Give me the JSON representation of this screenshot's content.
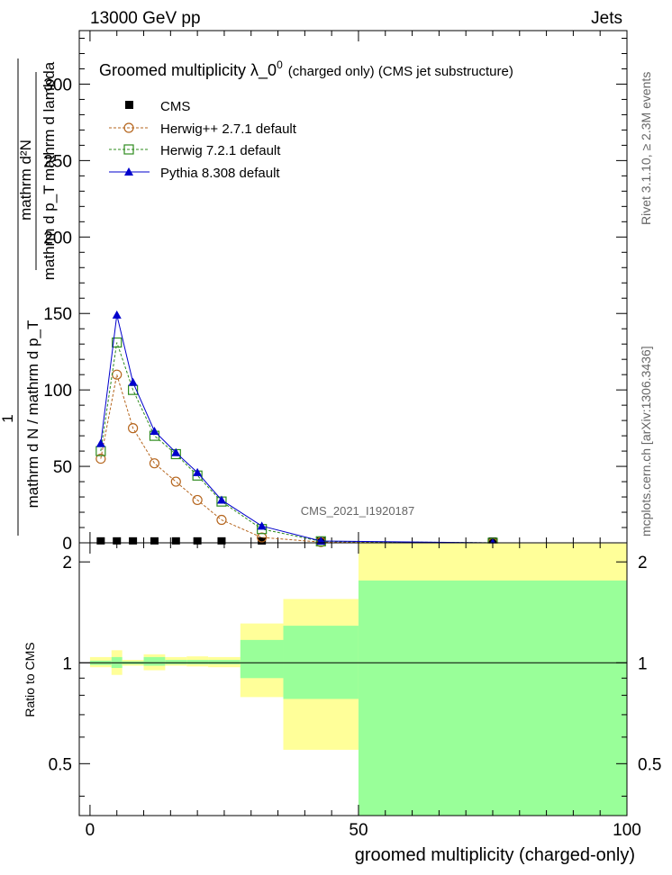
{
  "header": {
    "left": "13000 GeV pp",
    "right": "Jets"
  },
  "side_labels": {
    "rivet": "Rivet 3.1.10, ≥ 2.3M events",
    "mcplots": "mcplots.cern.ch [arXiv:1306.3436]"
  },
  "chart_data": [
    {
      "type": "line",
      "title": "Groomed multiplicity  λ_0",
      "title_sup": "0",
      "subtitle": "(charged only) (CMS jet substructure)",
      "watermark": "CMS_2021_I1920187",
      "ylabel": {
        "numerator": "mathrm d²N",
        "denominator_top": "mathrm d p_T mathrm d lambda",
        "one": "1",
        "denominator_bottom": "mathrm d N / mathrm d p_T"
      },
      "xlim": [
        -2,
        100
      ],
      "ylim": [
        0,
        335
      ],
      "y_ticks": [
        "0",
        "50",
        "100",
        "150",
        "200",
        "250",
        "300"
      ],
      "log_scale": false,
      "legend_position": "top-left",
      "cms_markers_x": [
        2,
        5,
        8,
        12,
        16,
        20,
        24.5,
        32,
        43,
        75
      ],
      "cms_values": [
        0.1,
        0.1,
        0.1,
        0.1,
        0.1,
        0.1,
        0.1,
        0.05,
        0.02,
        0.0
      ],
      "series": [
        {
          "name": "CMS",
          "color": "#000000",
          "marker": "square",
          "x": [
            2,
            5,
            8,
            12,
            16,
            20,
            24.5,
            32,
            43,
            75
          ],
          "values": [
            0.1,
            0.1,
            0.1,
            0.1,
            0.1,
            0.1,
            0.1,
            0.05,
            0.02,
            0.0
          ]
        },
        {
          "name": "Herwig++ 2.7.1 default",
          "color": "#b5651d",
          "marker": "circle",
          "dashed": true,
          "x": [
            2,
            5,
            8,
            12,
            16,
            20,
            24.5,
            32,
            43,
            75
          ],
          "values": [
            55,
            110,
            75,
            52,
            40,
            28,
            15,
            3.5,
            0.5,
            0.0
          ]
        },
        {
          "name": "Herwig 7.2.1 default",
          "color": "#2e8b1e",
          "marker": "open-square",
          "dashed": true,
          "x": [
            2,
            5,
            8,
            12,
            16,
            20,
            24.5,
            32,
            43,
            75
          ],
          "values": [
            60,
            131,
            100,
            70,
            58,
            44,
            27,
            9,
            1.0,
            0.0
          ]
        },
        {
          "name": "Pythia 8.308 default",
          "color": "#0000cc",
          "marker": "triangle",
          "dashed": false,
          "x": [
            2,
            5,
            8,
            12,
            16,
            20,
            24.5,
            32,
            43,
            75
          ],
          "values": [
            65,
            149,
            105,
            73,
            59,
            46,
            28,
            11,
            1.2,
            0.0
          ]
        }
      ]
    },
    {
      "type": "area",
      "ylabel": "Ratio to CMS",
      "xlabel": "groomed multiplicity (charged-only)",
      "xlim": [
        -2,
        100
      ],
      "ylim": [
        0.35,
        2.28
      ],
      "x_ticks": [
        "0",
        "50",
        "100"
      ],
      "y_ticks": [
        "0.5",
        "1",
        "2"
      ],
      "reference_line": 1,
      "band_colors": {
        "outer": "#ffff99",
        "inner": "#99ff99"
      },
      "bins": [
        {
          "x0": 0,
          "x1": 4,
          "outer": [
            0.97,
            1.04
          ],
          "inner": [
            0.985,
            1.015
          ]
        },
        {
          "x0": 4,
          "x1": 6,
          "outer": [
            0.92,
            1.09
          ],
          "inner": [
            0.965,
            1.04
          ]
        },
        {
          "x0": 6,
          "x1": 10,
          "outer": [
            0.98,
            1.02
          ],
          "inner": [
            0.99,
            1.01
          ]
        },
        {
          "x0": 10,
          "x1": 14,
          "outer": [
            0.95,
            1.06
          ],
          "inner": [
            0.98,
            1.04
          ]
        },
        {
          "x0": 14,
          "x1": 18,
          "outer": [
            0.98,
            1.04
          ],
          "inner": [
            0.99,
            1.02
          ]
        },
        {
          "x0": 18,
          "x1": 22,
          "outer": [
            0.975,
            1.045
          ],
          "inner": [
            0.99,
            1.02
          ]
        },
        {
          "x0": 22,
          "x1": 28,
          "outer": [
            0.97,
            1.04
          ],
          "inner": [
            0.99,
            1.02
          ]
        },
        {
          "x0": 28,
          "x1": 36,
          "outer": [
            0.79,
            1.31
          ],
          "inner": [
            0.9,
            1.17
          ]
        },
        {
          "x0": 36,
          "x1": 50,
          "outer": [
            0.55,
            1.55
          ],
          "inner": [
            0.78,
            1.29
          ]
        },
        {
          "x0": 50,
          "x1": 100,
          "outer": [
            0.1,
            2.27
          ],
          "inner": [
            0.1,
            1.76
          ]
        }
      ]
    }
  ]
}
